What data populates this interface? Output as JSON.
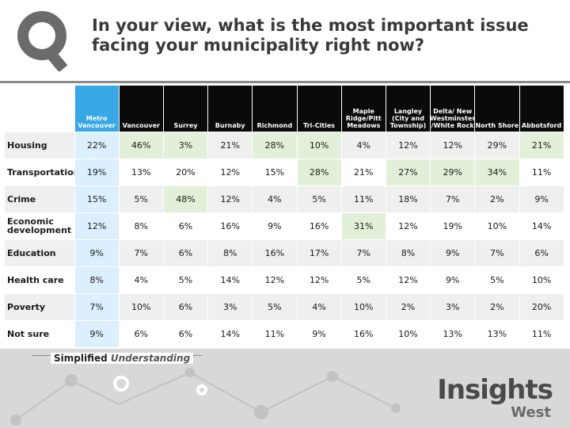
{
  "title": "In your view, what is the most important issue facing your municipality right now?",
  "columns": [
    "Metro Vancouver",
    "Vancouver",
    "Surrey",
    "Burnaby",
    "Richmond",
    "Tri-Cities",
    "Maple Ridge/Pitt Meadows",
    "Langley (City and Township)",
    "Delta/ New Westminster /White Rock",
    "North Shore",
    "Abbotsford"
  ],
  "rows": [
    {
      "label": "Housing",
      "values": [
        "22%",
        "46%",
        "3%",
        "21%",
        "28%",
        "10%",
        "4%",
        "12%",
        "12%",
        "29%",
        "21%"
      ]
    },
    {
      "label": "Transportation",
      "values": [
        "19%",
        "13%",
        "20%",
        "12%",
        "15%",
        "28%",
        "21%",
        "27%",
        "29%",
        "34%",
        "11%"
      ]
    },
    {
      "label": "Crime",
      "values": [
        "15%",
        "5%",
        "48%",
        "12%",
        "4%",
        "5%",
        "11%",
        "18%",
        "7%",
        "2%",
        "9%"
      ]
    },
    {
      "label": "Economic development",
      "values": [
        "12%",
        "8%",
        "6%",
        "16%",
        "9%",
        "16%",
        "31%",
        "12%",
        "19%",
        "10%",
        "14%"
      ]
    },
    {
      "label": "Education",
      "values": [
        "9%",
        "7%",
        "6%",
        "8%",
        "16%",
        "17%",
        "7%",
        "8%",
        "9%",
        "7%",
        "6%"
      ]
    },
    {
      "label": "Health care",
      "values": [
        "8%",
        "4%",
        "5%",
        "14%",
        "12%",
        "12%",
        "5%",
        "12%",
        "9%",
        "5%",
        "10%"
      ]
    },
    {
      "label": "Poverty",
      "values": [
        "7%",
        "10%",
        "6%",
        "3%",
        "5%",
        "4%",
        "10%",
        "2%",
        "3%",
        "2%",
        "20%"
      ]
    },
    {
      "label": "Not sure",
      "values": [
        "9%",
        "6%",
        "6%",
        "14%",
        "11%",
        "9%",
        "16%",
        "10%",
        "13%",
        "13%",
        "11%"
      ]
    }
  ],
  "highlights": [
    [
      0,
      1
    ],
    [
      0,
      2
    ],
    [
      0,
      4
    ],
    [
      0,
      5
    ],
    [
      0,
      10
    ],
    [
      1,
      5
    ],
    [
      1,
      7
    ],
    [
      1,
      8
    ],
    [
      1,
      9
    ],
    [
      2,
      2
    ],
    [
      3,
      6
    ]
  ],
  "colors": {
    "metro_header": "#37a7e6",
    "metro_cell": "#dcefff",
    "highlight": "#e2f0d9",
    "header_bg": "#0a0a0a"
  },
  "footer": {
    "tagline_main": "Simplified",
    "tagline_em": "Understanding",
    "brand_main": "Insights",
    "brand_sub": "West"
  },
  "icons": {
    "logo": "magnifier-q-logo"
  }
}
